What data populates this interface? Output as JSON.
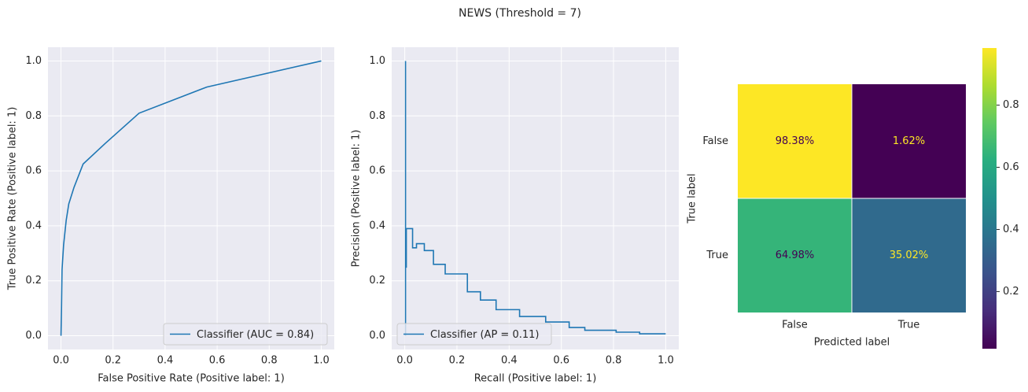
{
  "title": "NEWS (Threshold = 7)",
  "chart_data": [
    {
      "type": "line",
      "xlabel": "False Positive Rate (Positive label: 1)",
      "ylabel": "True Positive Rate (Positive label: 1)",
      "x": [
        0,
        0.002,
        0.004,
        0.01,
        0.02,
        0.03,
        0.05,
        0.085,
        0.17,
        0.3,
        0.56,
        1.0
      ],
      "series": [
        {
          "name": "Classifier (AUC = 0.84)",
          "color": "#1f77b4",
          "values": [
            0,
            0.1,
            0.24,
            0.33,
            0.42,
            0.48,
            0.54,
            0.625,
            0.7,
            0.81,
            0.905,
            1.0
          ]
        }
      ],
      "xlim": [
        -0.05,
        1.05
      ],
      "ylim": [
        -0.05,
        1.05
      ],
      "xticks": [
        {
          "value": 0,
          "label": "0.0"
        },
        0.2,
        0.4,
        0.6,
        0.8,
        {
          "value": 1,
          "label": "1.0"
        }
      ],
      "yticks": [
        {
          "value": 0,
          "label": "0.0"
        },
        0.2,
        0.4,
        0.6,
        0.8,
        {
          "value": 1,
          "label": "1.0"
        }
      ],
      "grid": true,
      "legend": "lower right"
    },
    {
      "type": "line",
      "xlabel": "Recall (Positive label: 1)",
      "ylabel": "Precision (Positive label: 1)",
      "x": [
        0.003,
        0.003,
        0.003,
        0.006,
        0.006,
        0.03,
        0.03,
        0.045,
        0.045,
        0.075,
        0.075,
        0.11,
        0.11,
        0.155,
        0.155,
        0.24,
        0.24,
        0.29,
        0.29,
        0.35,
        0.35,
        0.44,
        0.44,
        0.54,
        0.54,
        0.63,
        0.63,
        0.69,
        0.69,
        0.81,
        0.81,
        0.9,
        0.9,
        1.0
      ],
      "series": [
        {
          "name": "Classifier (AP = 0.11)",
          "color": "#1f77b4",
          "values": [
            1.0,
            0.0,
            0.25,
            0.25,
            0.39,
            0.39,
            0.32,
            0.32,
            0.335,
            0.335,
            0.31,
            0.31,
            0.26,
            0.26,
            0.225,
            0.225,
            0.16,
            0.16,
            0.13,
            0.13,
            0.095,
            0.095,
            0.07,
            0.07,
            0.05,
            0.05,
            0.03,
            0.03,
            0.02,
            0.02,
            0.013,
            0.013,
            0.007,
            0.007
          ]
        }
      ],
      "xlim": [
        -0.05,
        1.05
      ],
      "ylim": [
        -0.05,
        1.05
      ],
      "xticks": [
        {
          "value": 0,
          "label": "0.0"
        },
        0.2,
        0.4,
        0.6,
        0.8,
        {
          "value": 1,
          "label": "1.0"
        }
      ],
      "yticks": [
        {
          "value": 0,
          "label": "0.0"
        },
        0.2,
        0.4,
        0.6,
        0.8,
        {
          "value": 1,
          "label": "1.0"
        }
      ],
      "grid": true,
      "legend": "lower left"
    },
    {
      "type": "heatmap",
      "xlabel": "Predicted label",
      "ylabel": "True label",
      "categories": [
        "False",
        "True"
      ],
      "row_categories": [
        "False",
        "True"
      ],
      "values": [
        [
          0.9838,
          0.0162
        ],
        [
          0.6498,
          0.3502
        ]
      ],
      "value_labels": [
        [
          "98.38%",
          "1.62%"
        ],
        [
          "64.98%",
          "35.02%"
        ]
      ],
      "colormap": "viridis",
      "clim": [
        0.0162,
        0.9838
      ],
      "cticks": [
        0.2,
        0.4,
        0.6,
        0.8
      ]
    }
  ]
}
